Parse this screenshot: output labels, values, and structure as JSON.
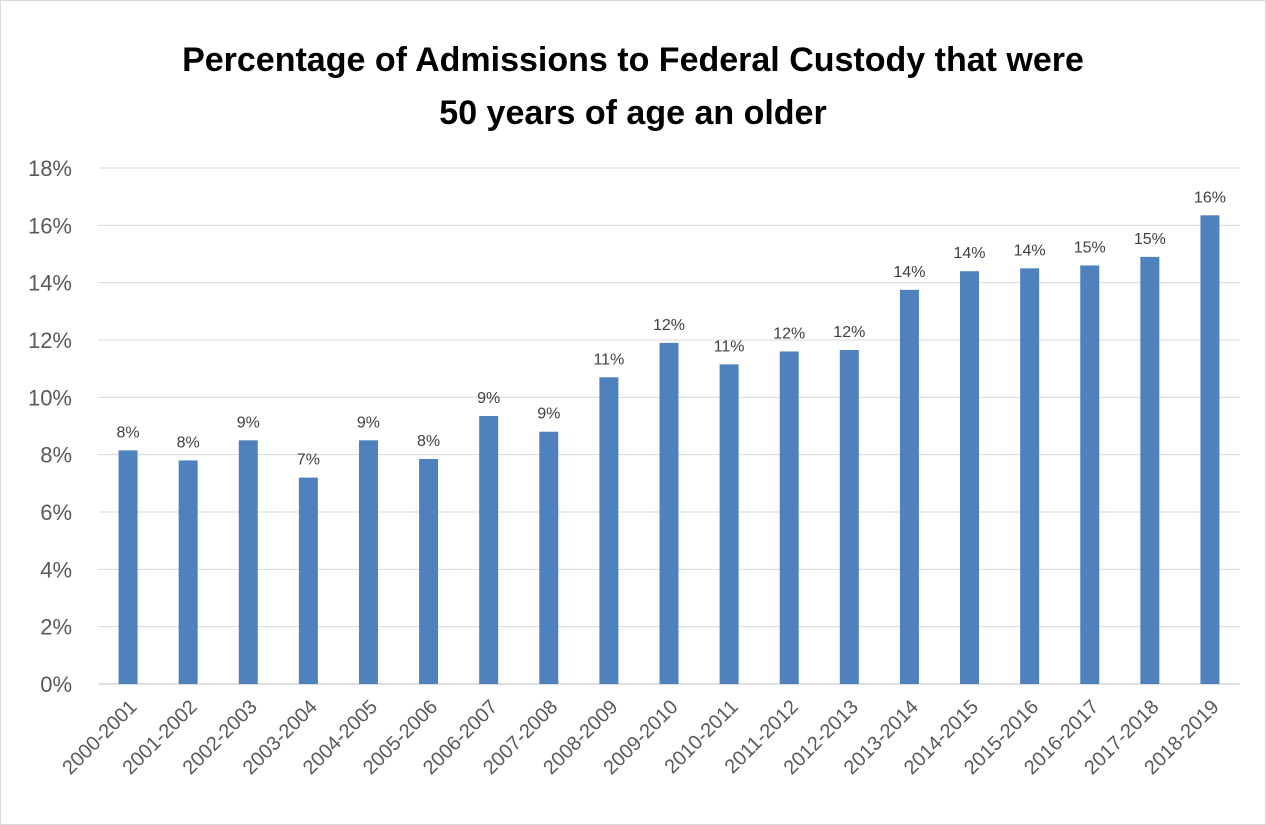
{
  "chart_data": {
    "type": "bar",
    "title_line1": "Percentage of Admissions to Federal Custody that were",
    "title_line2": "50 years of age an older",
    "xlabel": "",
    "ylabel": "",
    "ylim": [
      0,
      18
    ],
    "yticks": [
      "0%",
      "2%",
      "4%",
      "6%",
      "8%",
      "10%",
      "12%",
      "14%",
      "16%",
      "18%"
    ],
    "grid": true,
    "bar_color": "#4f81bd",
    "categories": [
      "2000-2001",
      "2001-2002",
      "2002-2003",
      "2003-2004",
      "2004-2005",
      "2005-2006",
      "2006-2007",
      "2007-2008",
      "2008-2009",
      "2009-2010",
      "2010-2011",
      "2011-2012",
      "2012-2013",
      "2013-2014",
      "2014-2015",
      "2015-2016",
      "2016-2017",
      "2017-2018",
      "2018-2019"
    ],
    "values": [
      8.15,
      7.8,
      8.5,
      7.2,
      8.5,
      7.85,
      9.35,
      8.8,
      10.7,
      11.9,
      11.15,
      11.6,
      11.65,
      13.75,
      14.4,
      14.5,
      14.6,
      14.9,
      16.35
    ],
    "data_labels": [
      "8%",
      "8%",
      "9%",
      "7%",
      "9%",
      "8%",
      "9%",
      "9%",
      "11%",
      "12%",
      "11%",
      "12%",
      "12%",
      "14%",
      "14%",
      "14%",
      "15%",
      "15%",
      "16%"
    ]
  }
}
